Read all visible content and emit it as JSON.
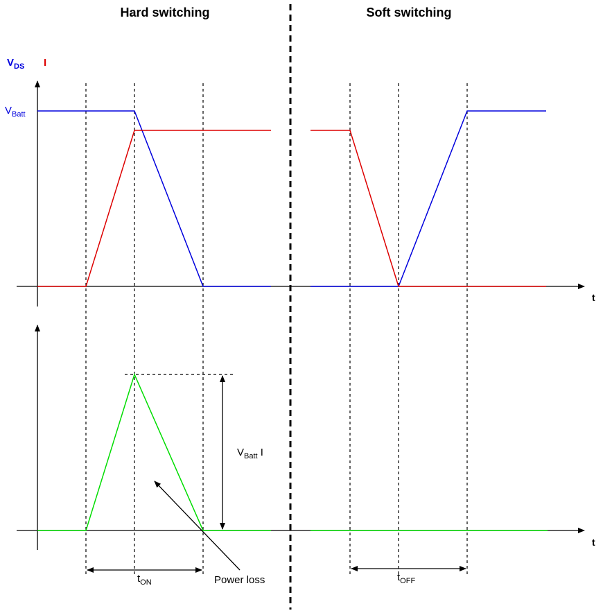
{
  "headings": {
    "left": "Hard switching",
    "right": "Soft switching"
  },
  "labels": {
    "vds_main": "V",
    "vds_sub": "DS",
    "current": "I",
    "vbatt_main": "V",
    "vbatt_sub": "Batt",
    "t_axis_top": "t",
    "t_axis_bottom": "t",
    "power_main": "V",
    "power_sub": "Batt",
    "power_tail": " I",
    "power_loss": "Power loss",
    "t_on_main": "t",
    "t_on_sub": "ON",
    "t_off_main": "t",
    "t_off_sub": "OFF"
  },
  "colors": {
    "voltage": "#0000dd",
    "current": "#dd0000",
    "power": "#00dd00",
    "axes": "#000000"
  }
}
